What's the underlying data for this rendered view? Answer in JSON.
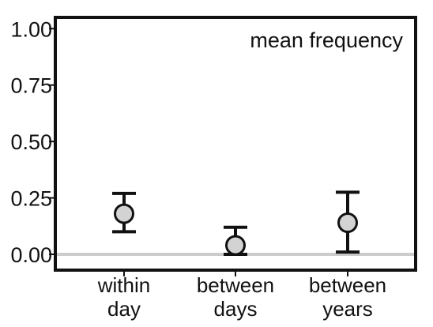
{
  "chart_data": {
    "type": "scatter",
    "title": "mean frequency",
    "xlabel": "",
    "ylabel": "",
    "categories": [
      "within day",
      "between days",
      "between years"
    ],
    "category_lines": [
      [
        "within",
        "day"
      ],
      [
        "between",
        "days"
      ],
      [
        "between",
        "years"
      ]
    ],
    "yticks": [
      "0.00",
      "0.25",
      "0.50",
      "0.75",
      "1.00"
    ],
    "ytick_values": [
      0,
      0.25,
      0.5,
      0.75,
      1.0
    ],
    "ylim": [
      -0.07,
      1.05
    ],
    "reference_line": 0,
    "series": [
      {
        "values": [
          0.18,
          0.04,
          0.14
        ],
        "lower": [
          0.1,
          0.0,
          0.01
        ],
        "upper": [
          0.27,
          0.12,
          0.275
        ]
      }
    ],
    "grid": false,
    "legend": "none",
    "colors": {
      "point_fill": "#d3d3d3",
      "stroke": "#111111",
      "reference_line": "#cccccc"
    }
  }
}
